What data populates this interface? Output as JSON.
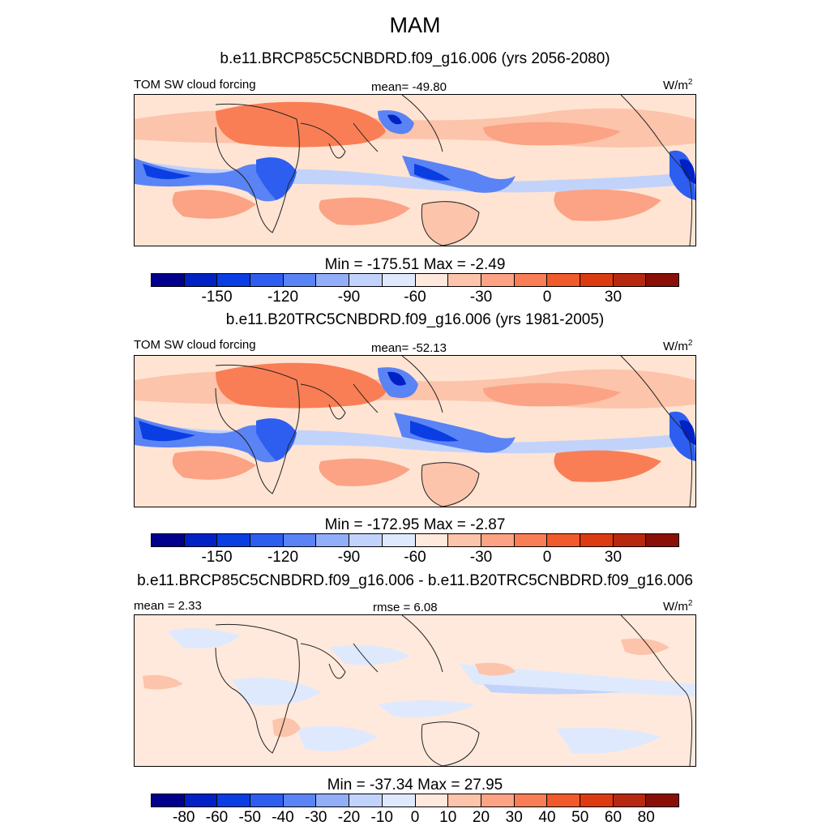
{
  "page": {
    "season_title": "MAM"
  },
  "colors": {
    "scale": [
      "#00008c",
      "#0022c4",
      "#0a3ee2",
      "#2e5ef0",
      "#5a83f5",
      "#93aef9",
      "#c2d3fb",
      "#dfe9fd",
      "#ffe9dc",
      "#fcc4aa",
      "#fba384",
      "#f97e55",
      "#f15a2a",
      "#dc3a11",
      "#b72810",
      "#8a0f06"
    ],
    "land_outline": "#222222"
  },
  "chart_data": [
    {
      "type": "heatmap",
      "title": "b.e11.BRCP85C5CNBDRD.f09_g16.006 (yrs 2056-2080)",
      "left_label": "TOM SW cloud forcing",
      "center_label": "mean= -49.80",
      "units": "W/m",
      "units_sup": "2",
      "minmax": "Min = -175.51 Max =  -2.49",
      "mean": -49.8,
      "min": -175.51,
      "max": -2.49,
      "colorbar_ticks": [
        "-150",
        "-120",
        "-90",
        "-60",
        "-30",
        "0",
        "30"
      ]
    },
    {
      "type": "heatmap",
      "title": "b.e11.B20TRC5CNBDRD.f09_g16.006 (yrs 1981-2005)",
      "left_label": "TOM SW cloud forcing",
      "center_label": "mean= -52.13",
      "units": "W/m",
      "units_sup": "2",
      "minmax": "Min = -172.95 Max =  -2.87",
      "mean": -52.13,
      "min": -172.95,
      "max": -2.87,
      "colorbar_ticks": [
        "-150",
        "-120",
        "-90",
        "-60",
        "-30",
        "0",
        "30"
      ]
    },
    {
      "type": "heatmap",
      "title": "b.e11.BRCP85C5CNBDRD.f09_g16.006 - b.e11.B20TRC5CNBDRD.f09_g16.006",
      "left_label": "mean =   2.33",
      "center_label": "rmse =   6.08",
      "units": "W/m",
      "units_sup": "2",
      "minmax": "Min = -37.34 Max =  27.95",
      "mean": 2.33,
      "rmse": 6.08,
      "min": -37.34,
      "max": 27.95,
      "colorbar_ticks": [
        "-80",
        "-60",
        "-50",
        "-40",
        "-30",
        "-20",
        "-10",
        "0",
        "10",
        "20",
        "30",
        "40",
        "50",
        "60",
        "80"
      ]
    }
  ]
}
